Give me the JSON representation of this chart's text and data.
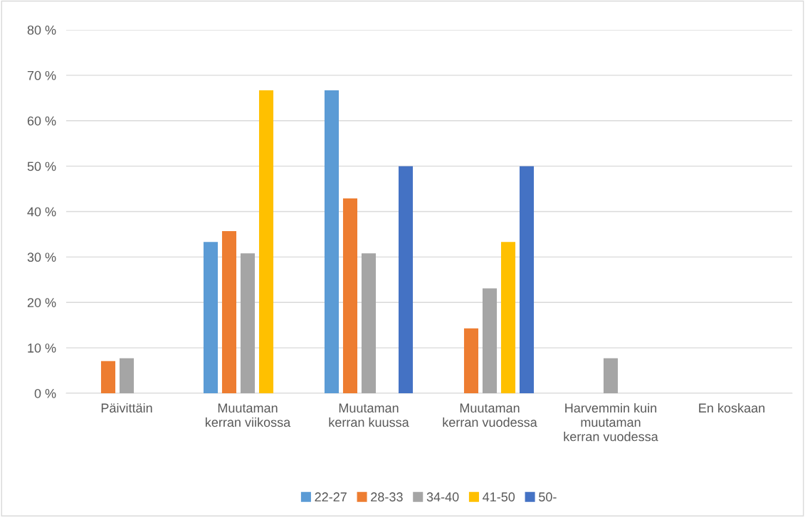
{
  "chart_data": {
    "type": "bar",
    "categories": [
      "Päivittäin",
      "Muutaman\nkerran viikossa",
      "Muutaman\nkerran kuussa",
      "Muutaman\nkerran vuodessa",
      "Harvemmin kuin\nmuutaman\nkerran vuodessa",
      "En koskaan"
    ],
    "series": [
      {
        "name": "22-27",
        "color": "#5b9bd5",
        "values": [
          0,
          33.3,
          66.7,
          0,
          0,
          0
        ]
      },
      {
        "name": "28-33",
        "color": "#ed7d31",
        "values": [
          7.1,
          35.7,
          42.9,
          14.3,
          0,
          0
        ]
      },
      {
        "name": "34-40",
        "color": "#a5a5a5",
        "values": [
          7.7,
          30.8,
          30.8,
          23.1,
          7.7,
          0
        ]
      },
      {
        "name": "41-50",
        "color": "#ffc000",
        "values": [
          0,
          66.7,
          0,
          33.3,
          0,
          0
        ]
      },
      {
        "name": "50-",
        "color": "#4472c4",
        "values": [
          0,
          0,
          50,
          50,
          0,
          0
        ]
      }
    ],
    "ylim": [
      0,
      80
    ],
    "yticks": [
      {
        "value": 0,
        "label": "0 %"
      },
      {
        "value": 10,
        "label": "10 %"
      },
      {
        "value": 20,
        "label": "20 %"
      },
      {
        "value": 30,
        "label": "30 %"
      },
      {
        "value": 40,
        "label": "40 %"
      },
      {
        "value": 50,
        "label": "50 %"
      },
      {
        "value": 60,
        "label": "60 %"
      },
      {
        "value": 70,
        "label": "70 %"
      },
      {
        "value": 80,
        "label": "80 %"
      }
    ],
    "grid": "y",
    "legend": "bottom"
  }
}
